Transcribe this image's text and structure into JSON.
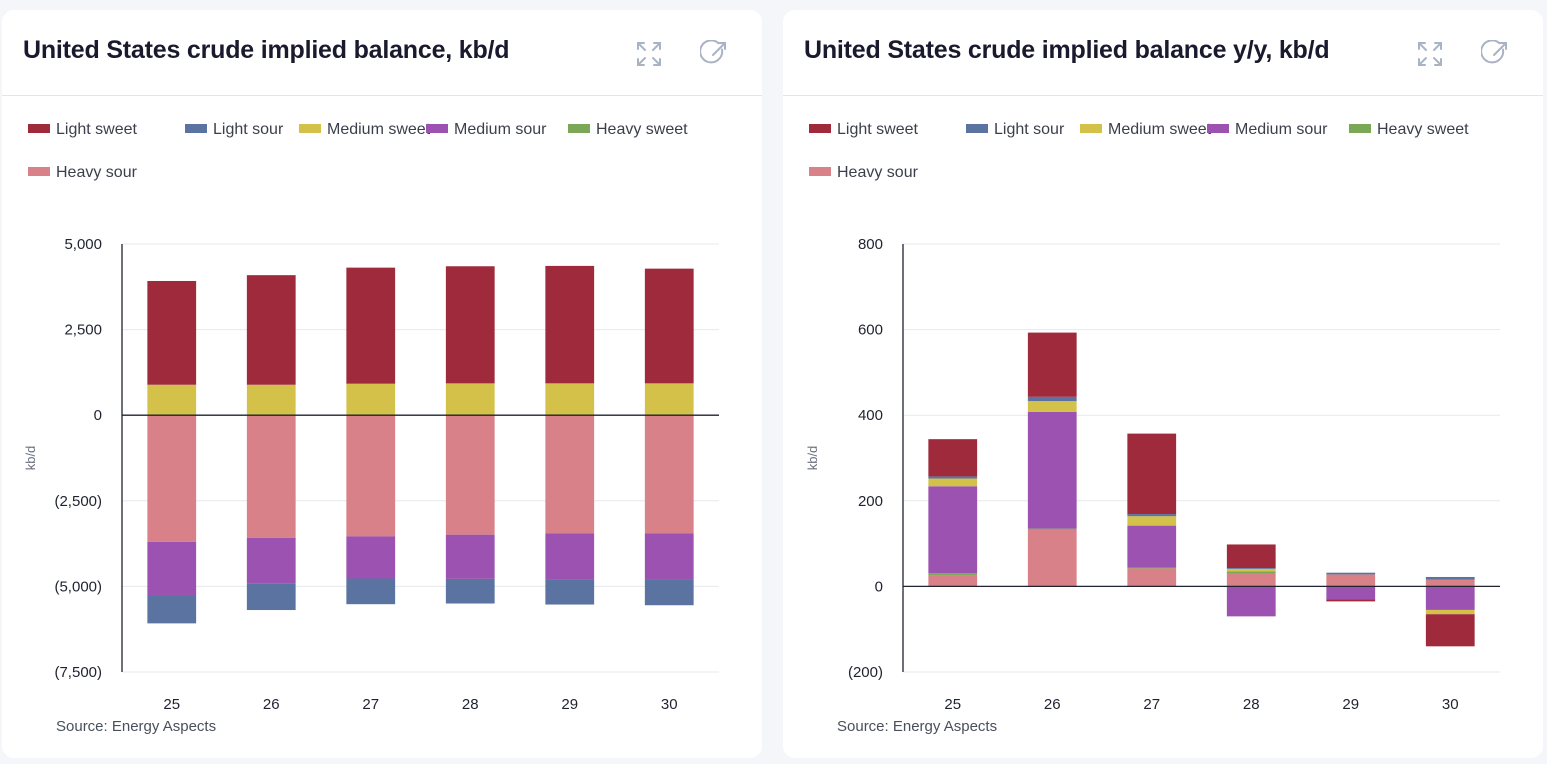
{
  "source_label": "Source: Energy Aspects",
  "icons": {
    "expand": "expand-icon",
    "share": "share-icon"
  },
  "legend": [
    {
      "name": "Light sweet",
      "color": "#9e2a3c"
    },
    {
      "name": "Light sour",
      "color": "#5a73a0"
    },
    {
      "name": "Medium sweet",
      "color": "#d4c14a"
    },
    {
      "name": "Medium sour",
      "color": "#9b52b0"
    },
    {
      "name": "Heavy sweet",
      "color": "#7aa857"
    },
    {
      "name": "Heavy sour",
      "color": "#d98189"
    }
  ],
  "chart_data": [
    {
      "type": "bar",
      "stacked": true,
      "title": "United States crude implied balance, kb/d",
      "ylabel": "kb/d",
      "xlabel": "",
      "ylim": [
        -7500,
        5000
      ],
      "yticks": [
        5000,
        2500,
        0,
        -2500,
        -5000,
        -7500
      ],
      "ytick_labels": [
        "5,000",
        "2,500",
        "0",
        "(2,500)",
        "(5,000)",
        "(7,500)"
      ],
      "categories": [
        "25",
        "26",
        "27",
        "28",
        "29",
        "30"
      ],
      "series": [
        {
          "name": "Heavy sour",
          "values": [
            -3700,
            -3580,
            -3540,
            -3490,
            -3450,
            -3450
          ]
        },
        {
          "name": "Medium sour",
          "values": [
            -1580,
            -1330,
            -1230,
            -1290,
            -1360,
            -1350
          ]
        },
        {
          "name": "Heavy sweet",
          "values": [
            0,
            0,
            0,
            0,
            0,
            0
          ]
        },
        {
          "name": "Light sour",
          "values": [
            -800,
            -780,
            -750,
            -720,
            -720,
            -750
          ]
        },
        {
          "name": "Medium sweet",
          "values": [
            890,
            890,
            920,
            930,
            930,
            930
          ]
        },
        {
          "name": "Light sweet",
          "values": [
            3030,
            3200,
            3390,
            3420,
            3430,
            3350
          ]
        }
      ]
    },
    {
      "type": "bar",
      "stacked": true,
      "title": "United States crude implied balance y/y, kb/d",
      "ylabel": "kb/d",
      "xlabel": "",
      "ylim": [
        -200,
        800
      ],
      "yticks": [
        800,
        600,
        400,
        200,
        0,
        -200
      ],
      "ytick_labels": [
        "800",
        "600",
        "400",
        "200",
        "0",
        "(200)"
      ],
      "categories": [
        "25",
        "26",
        "27",
        "28",
        "29",
        "30"
      ],
      "series": [
        {
          "name": "Heavy sour",
          "values": [
            25,
            133,
            42,
            30,
            28,
            16
          ]
        },
        {
          "name": "Heavy sweet",
          "values": [
            6,
            2,
            2,
            5,
            0,
            0
          ]
        },
        {
          "name": "Medium sour",
          "values": [
            203,
            273,
            98,
            -70,
            -30,
            -55
          ]
        },
        {
          "name": "Medium sweet",
          "values": [
            18,
            25,
            22,
            6,
            0,
            -10
          ]
        },
        {
          "name": "Light sour",
          "values": [
            5,
            10,
            5,
            2,
            4,
            6
          ]
        },
        {
          "name": "Light sweet",
          "values": [
            87,
            150,
            188,
            55,
            -5,
            -75
          ]
        }
      ]
    }
  ]
}
